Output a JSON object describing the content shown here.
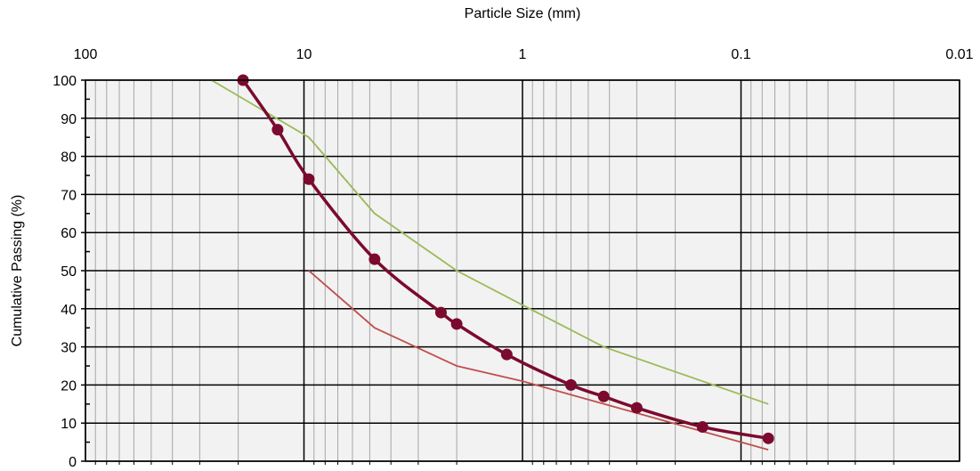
{
  "chart_data": {
    "type": "line",
    "title": "",
    "xlabel": "Particle Size (mm)",
    "ylabel": "Cumulative Passing (%)",
    "x_scale": "log",
    "x_axis_reversed": true,
    "x_axis_position": "top",
    "xlim": [
      100,
      0.01
    ],
    "ylim": [
      0,
      100
    ],
    "x_ticks": [
      100,
      10,
      1,
      0.1,
      0.01
    ],
    "x_tick_labels": [
      "100",
      "10",
      "1",
      "0.1",
      "0.01"
    ],
    "y_ticks": [
      0,
      10,
      20,
      30,
      40,
      50,
      60,
      70,
      80,
      90,
      100
    ],
    "y_tick_labels": [
      "0",
      "10",
      "20",
      "30",
      "40",
      "50",
      "60",
      "70",
      "80",
      "90",
      "100"
    ],
    "grid": true,
    "legend": "none",
    "series": [
      {
        "color": "#7b0a2e",
        "markers": true,
        "points": [
          [
            19,
            100
          ],
          [
            13.2,
            87
          ],
          [
            9.5,
            74
          ],
          [
            4.75,
            53
          ],
          [
            2.36,
            39
          ],
          [
            2,
            36
          ],
          [
            1.18,
            28
          ],
          [
            0.6,
            20
          ],
          [
            0.425,
            17
          ],
          [
            0.3,
            14
          ],
          [
            0.15,
            9
          ],
          [
            0.075,
            6
          ]
        ]
      },
      {
        "color": "#9bbb59",
        "markers": false,
        "points": [
          [
            26.5,
            100
          ],
          [
            9.5,
            85
          ],
          [
            4.75,
            65
          ],
          [
            2,
            50
          ],
          [
            1,
            41
          ],
          [
            0.425,
            30
          ],
          [
            0.075,
            15
          ]
        ]
      },
      {
        "color": "#c0504d",
        "markers": false,
        "points": [
          [
            9.5,
            50
          ],
          [
            4.75,
            35
          ],
          [
            2,
            25
          ],
          [
            1,
            21
          ],
          [
            0.075,
            3
          ]
        ]
      }
    ],
    "connectors": [
      {
        "style": "dashed",
        "color": "#000000",
        "points": [
          [
            9.5,
            85
          ],
          [
            4.75,
            65
          ]
        ]
      },
      {
        "style": "dashed",
        "color": "#000000",
        "points": [
          [
            9.5,
            50
          ],
          [
            4.75,
            35
          ]
        ]
      }
    ]
  }
}
